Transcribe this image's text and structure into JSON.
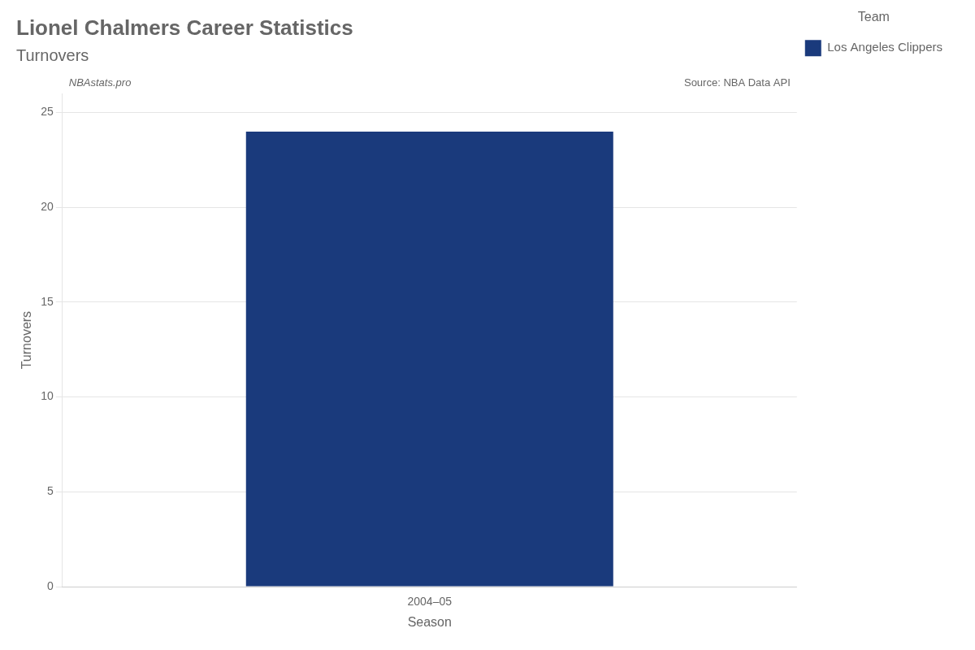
{
  "chart_data": {
    "type": "bar",
    "title": "Lionel Chalmers Career Statistics",
    "subtitle": "Turnovers",
    "annotations": [
      "NBAstats.pro",
      "Source: NBA Data API"
    ],
    "x_label": "Season",
    "y_label": "Turnovers",
    "categories": [
      "2004–05"
    ],
    "series": [
      {
        "name": "Los Angeles Clippers",
        "color": "#1a3a7c",
        "values": [
          24
        ]
      }
    ],
    "legend_title": "Team",
    "legend": "right",
    "ylim": [
      0,
      26
    ],
    "yticks": [
      0,
      5,
      10,
      15,
      20,
      25
    ],
    "grid": true
  }
}
